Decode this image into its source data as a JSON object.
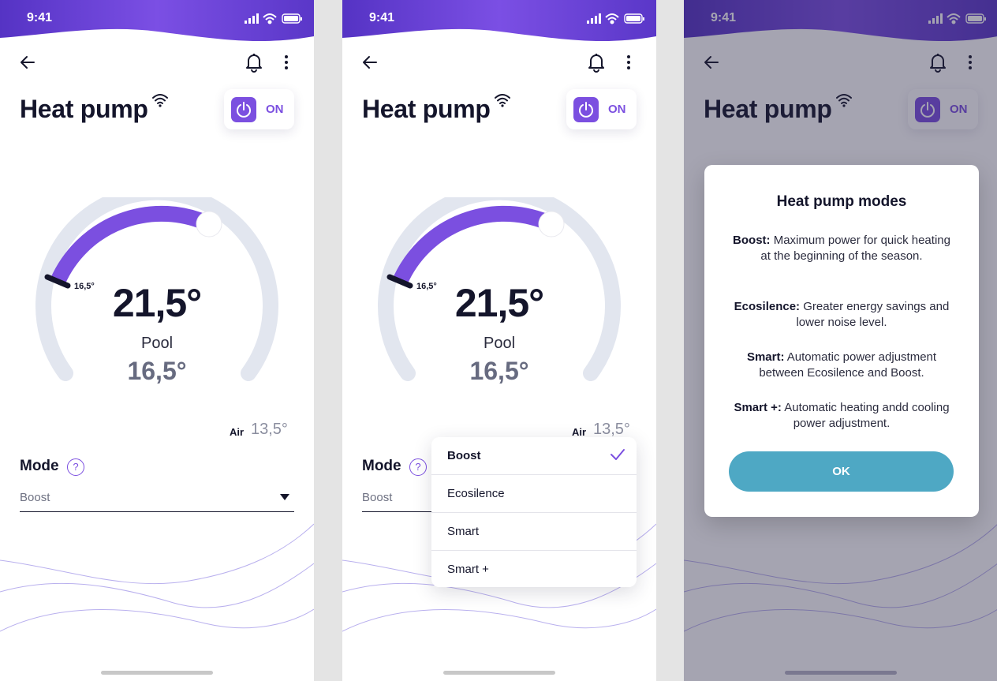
{
  "status_bar": {
    "time": "9:41"
  },
  "header": {
    "title": "Heat pump",
    "power": {
      "label": "ON",
      "state": "on"
    }
  },
  "gauge": {
    "min_label": "16,5°",
    "target_temp": "21,5°",
    "sub_label": "Pool",
    "current_temp": "16,5°",
    "fill_fraction": 0.45
  },
  "air": {
    "label": "Air",
    "value": "13,5°"
  },
  "mode": {
    "label": "Mode",
    "help": "?",
    "selected": "Boost",
    "options": [
      {
        "label": "Boost",
        "selected": true
      },
      {
        "label": "Ecosilence",
        "selected": false
      },
      {
        "label": "Smart",
        "selected": false
      },
      {
        "label": "Smart +",
        "selected": false
      }
    ]
  },
  "modal": {
    "title": "Heat pump modes",
    "descriptions": [
      {
        "name": "Boost:",
        "text": "Maximum power for quick heating at the beginning of the season."
      },
      {
        "name": "Ecosilence:",
        "text": "Greater energy savings and lower noise level."
      },
      {
        "name": "Smart:",
        "text": "Automatic power adjustment between Ecosilence and Boost."
      },
      {
        "name": "Smart +:",
        "text": "Automatic heating andd cooling power adjustment."
      }
    ],
    "ok_label": "OK"
  },
  "colors": {
    "accent": "#7b4fe0",
    "header_gradient_start": "#5a35c8",
    "header_gradient_end": "#7a4fe4",
    "gauge_track": "#e2e6ef",
    "ok_button": "#4ea8c4"
  },
  "icons": [
    "back-arrow-icon",
    "bell-icon",
    "more-vertical-icon",
    "wifi-icon",
    "power-icon",
    "check-icon",
    "signal-icon",
    "battery-icon"
  ]
}
